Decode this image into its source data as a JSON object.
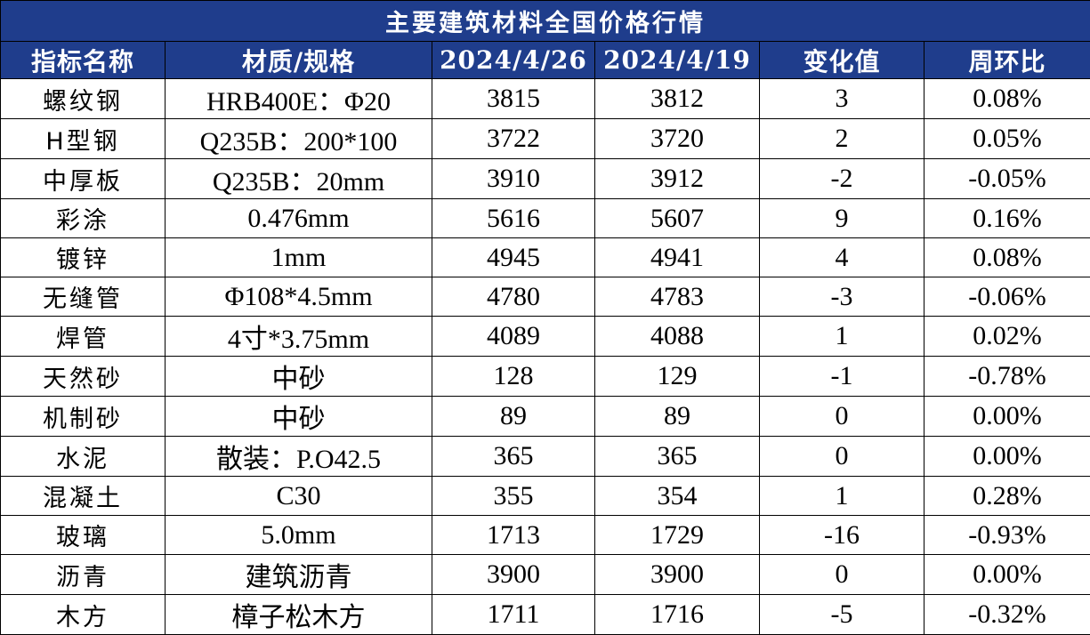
{
  "title": "主要建筑材料全国价格行情",
  "headers": [
    "指标名称",
    "材质/规格",
    "2024/4/26",
    "2024/4/19",
    "变化值",
    "周环比"
  ],
  "rows": [
    {
      "name": "螺纹钢",
      "spec": "HRB400E：Φ20",
      "cur": "3815",
      "prev": "3812",
      "change": "3",
      "pct": "0.08%",
      "dir": "up"
    },
    {
      "name": "H型钢",
      "spec": "Q235B：200*100",
      "cur": "3722",
      "prev": "3720",
      "change": "2",
      "pct": "0.05%",
      "dir": "up"
    },
    {
      "name": "中厚板",
      "spec": "Q235B：20mm",
      "cur": "3910",
      "prev": "3912",
      "change": "-2",
      "pct": "-0.05%",
      "dir": "down"
    },
    {
      "name": "彩涂",
      "spec": "0.476mm",
      "cur": "5616",
      "prev": "5607",
      "change": "9",
      "pct": "0.16%",
      "dir": "up"
    },
    {
      "name": "镀锌",
      "spec": "1mm",
      "cur": "4945",
      "prev": "4941",
      "change": "4",
      "pct": "0.08%",
      "dir": "up"
    },
    {
      "name": "无缝管",
      "spec": "Φ108*4.5mm",
      "cur": "4780",
      "prev": "4783",
      "change": "-3",
      "pct": "-0.06%",
      "dir": "down"
    },
    {
      "name": "焊管",
      "spec": "4寸*3.75mm",
      "cur": "4089",
      "prev": "4088",
      "change": "1",
      "pct": "0.02%",
      "dir": "up"
    },
    {
      "name": "天然砂",
      "spec": "中砂",
      "cur": "128",
      "prev": "129",
      "change": "-1",
      "pct": "-0.78%",
      "dir": "down"
    },
    {
      "name": "机制砂",
      "spec": "中砂",
      "cur": "89",
      "prev": "89",
      "change": "0",
      "pct": "0.00%",
      "dir": "flat"
    },
    {
      "name": "水泥",
      "spec": "散装：P.O42.5",
      "cur": "365",
      "prev": "365",
      "change": "0",
      "pct": "0.00%",
      "dir": "flat"
    },
    {
      "name": "混凝土",
      "spec": "C30",
      "cur": "355",
      "prev": "354",
      "change": "1",
      "pct": "0.28%",
      "dir": "up"
    },
    {
      "name": "玻璃",
      "spec": "5.0mm",
      "cur": "1713",
      "prev": "1729",
      "change": "-16",
      "pct": "-0.93%",
      "dir": "down"
    },
    {
      "name": "沥青",
      "spec": "建筑沥青",
      "cur": "3900",
      "prev": "3900",
      "change": "0",
      "pct": "0.00%",
      "dir": "flat"
    },
    {
      "name": "木方",
      "spec": "樟子松木方",
      "cur": "1711",
      "prev": "1716",
      "change": "-5",
      "pct": "-0.32%",
      "dir": "down"
    }
  ],
  "colors": {
    "header_bg": "#1f3d8c",
    "up": "#c00000",
    "down": "#00a050",
    "flat": "#000000"
  }
}
